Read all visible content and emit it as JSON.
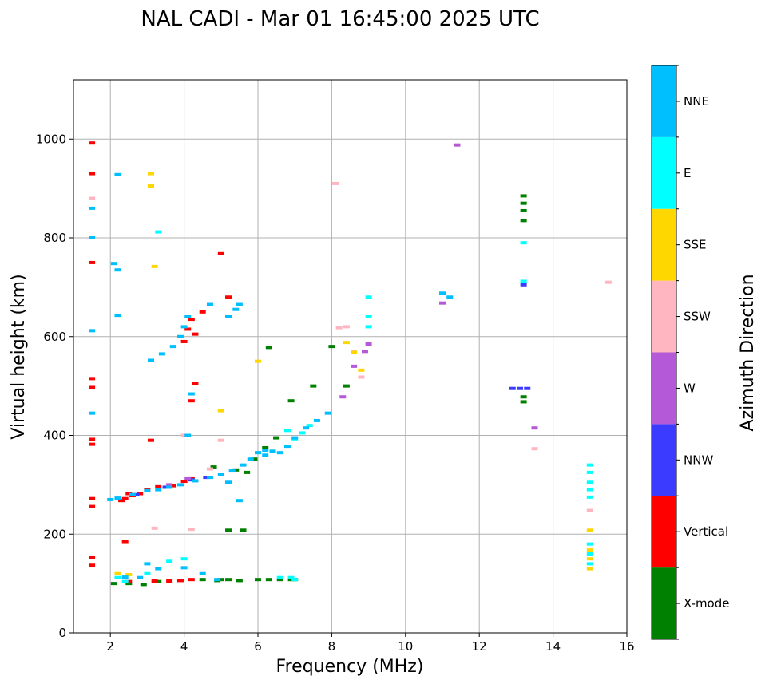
{
  "chart_data": {
    "type": "scatter",
    "title": "NAL CADI - Mar 01 16:45:00 2025 UTC",
    "xlabel": "Frequency (MHz)",
    "ylabel": "Virtual height (km)",
    "xlim": [
      1,
      16
    ],
    "ylim": [
      0,
      1120
    ],
    "x_ticks": [
      2,
      4,
      6,
      8,
      10,
      12,
      14,
      16
    ],
    "y_ticks": [
      0,
      200,
      400,
      600,
      800,
      1000
    ],
    "grid": true,
    "colorbar": {
      "label": "Azimuth Direction",
      "categories": [
        "X-mode",
        "Vertical",
        "NNW",
        "W",
        "SSW",
        "SSE",
        "E",
        "NNE"
      ],
      "colors": [
        "#008000",
        "#ff0000",
        "#3b3bff",
        "#b45ad8",
        "#ffb6c1",
        "#ffd700",
        "#00ffff",
        "#00bfff"
      ]
    },
    "series": [
      {
        "name": "X-mode",
        "points": [
          [
            2.1,
            100
          ],
          [
            2.5,
            100
          ],
          [
            2.9,
            98
          ],
          [
            3.3,
            104
          ],
          [
            4.5,
            108
          ],
          [
            5.0,
            108
          ],
          [
            5.2,
            108
          ],
          [
            5.5,
            106
          ],
          [
            6.0,
            108
          ],
          [
            6.3,
            108
          ],
          [
            6.6,
            108
          ],
          [
            6.9,
            108
          ],
          [
            7.0,
            108
          ],
          [
            5.2,
            208
          ],
          [
            5.6,
            208
          ],
          [
            4.9,
            106
          ],
          [
            5.9,
            352
          ],
          [
            6.2,
            375
          ],
          [
            6.5,
            395
          ],
          [
            6.3,
            578
          ],
          [
            6.9,
            470
          ],
          [
            7.5,
            500
          ],
          [
            8.0,
            580
          ],
          [
            8.4,
            500
          ],
          [
            13.2,
            885
          ],
          [
            13.2,
            870
          ],
          [
            13.2,
            855
          ],
          [
            13.2,
            835
          ],
          [
            13.2,
            478
          ],
          [
            13.2,
            468
          ],
          [
            4.8,
            336
          ],
          [
            5.4,
            330
          ],
          [
            5.7,
            325
          ]
        ]
      },
      {
        "name": "Vertical",
        "points": [
          [
            1.5,
            992
          ],
          [
            1.5,
            930
          ],
          [
            1.5,
            750
          ],
          [
            1.5,
            515
          ],
          [
            1.5,
            497
          ],
          [
            1.5,
            392
          ],
          [
            1.5,
            382
          ],
          [
            1.5,
            272
          ],
          [
            1.5,
            256
          ],
          [
            1.5,
            152
          ],
          [
            1.5,
            137
          ],
          [
            2.4,
            185
          ],
          [
            2.4,
            272
          ],
          [
            2.6,
            278
          ],
          [
            2.8,
            282
          ],
          [
            3.0,
            290
          ],
          [
            3.3,
            296
          ],
          [
            3.7,
            298
          ],
          [
            4.0,
            307
          ],
          [
            4.2,
            312
          ],
          [
            3.2,
            105
          ],
          [
            3.6,
            105
          ],
          [
            3.9,
            106
          ],
          [
            4.2,
            108
          ],
          [
            2.5,
            104
          ],
          [
            4.0,
            590
          ],
          [
            4.1,
            615
          ],
          [
            4.2,
            635
          ],
          [
            4.2,
            470
          ],
          [
            4.3,
            505
          ],
          [
            5.0,
            768
          ],
          [
            5.2,
            680
          ],
          [
            3.1,
            390
          ],
          [
            4.5,
            650
          ],
          [
            2.5,
            282
          ],
          [
            2.3,
            268
          ],
          [
            4.3,
            605
          ]
        ]
      },
      {
        "name": "NNW",
        "points": [
          [
            2.7,
            280
          ],
          [
            3.5,
            295
          ],
          [
            4.2,
            310
          ],
          [
            4.6,
            315
          ],
          [
            12.9,
            495
          ],
          [
            13.1,
            495
          ],
          [
            13.2,
            705
          ],
          [
            13.3,
            495
          ]
        ]
      },
      {
        "name": "W",
        "points": [
          [
            8.3,
            478
          ],
          [
            8.6,
            540
          ],
          [
            8.9,
            570
          ],
          [
            9.0,
            585
          ],
          [
            11.0,
            668
          ],
          [
            11.4,
            988
          ],
          [
            13.5,
            415
          ],
          [
            4.1,
            312
          ],
          [
            3.6,
            300
          ]
        ]
      },
      {
        "name": "SSW",
        "points": [
          [
            1.5,
            880
          ],
          [
            8.1,
            910
          ],
          [
            8.2,
            618
          ],
          [
            8.4,
            620
          ],
          [
            8.6,
            570
          ],
          [
            8.8,
            518
          ],
          [
            13.5,
            373
          ],
          [
            15.0,
            248
          ],
          [
            15.5,
            710
          ],
          [
            4.0,
            400
          ],
          [
            4.2,
            210
          ],
          [
            5.0,
            390
          ],
          [
            3.2,
            212
          ],
          [
            4.7,
            332
          ]
        ]
      },
      {
        "name": "SSE",
        "points": [
          [
            3.1,
            930
          ],
          [
            3.1,
            905
          ],
          [
            3.2,
            742
          ],
          [
            8.4,
            588
          ],
          [
            8.6,
            568
          ],
          [
            8.8,
            532
          ],
          [
            15.0,
            208
          ],
          [
            15.0,
            168
          ],
          [
            15.0,
            150
          ],
          [
            15.0,
            130
          ],
          [
            2.2,
            120
          ],
          [
            2.5,
            118
          ],
          [
            5.0,
            450
          ],
          [
            6.0,
            550
          ]
        ]
      },
      {
        "name": "E",
        "points": [
          [
            2.2,
            112
          ],
          [
            3.0,
            120
          ],
          [
            3.6,
            145
          ],
          [
            4.0,
            150
          ],
          [
            6.6,
            112
          ],
          [
            6.9,
            112
          ],
          [
            7.0,
            108
          ],
          [
            9.0,
            620
          ],
          [
            9.0,
            640
          ],
          [
            9.0,
            680
          ],
          [
            15.0,
            340
          ],
          [
            15.0,
            325
          ],
          [
            15.0,
            305
          ],
          [
            15.0,
            290
          ],
          [
            15.0,
            275
          ],
          [
            15.0,
            180
          ],
          [
            15.0,
            160
          ],
          [
            15.0,
            140
          ],
          [
            2.4,
            104
          ],
          [
            3.3,
            812
          ],
          [
            6.8,
            410
          ],
          [
            7.0,
            393
          ],
          [
            7.2,
            405
          ],
          [
            7.4,
            420
          ],
          [
            13.2,
            790
          ],
          [
            13.2,
            712
          ]
        ]
      },
      {
        "name": "NNE",
        "points": [
          [
            1.5,
            860
          ],
          [
            1.5,
            800
          ],
          [
            1.5,
            612
          ],
          [
            1.5,
            445
          ],
          [
            2.2,
            928
          ],
          [
            2.1,
            748
          ],
          [
            2.2,
            735
          ],
          [
            2.2,
            643
          ],
          [
            2.0,
            270
          ],
          [
            2.2,
            273
          ],
          [
            2.6,
            280
          ],
          [
            3.0,
            288
          ],
          [
            3.3,
            290
          ],
          [
            3.6,
            295
          ],
          [
            3.9,
            300
          ],
          [
            4.3,
            308
          ],
          [
            4.7,
            315
          ],
          [
            5.0,
            320
          ],
          [
            5.3,
            328
          ],
          [
            5.6,
            340
          ],
          [
            5.8,
            352
          ],
          [
            6.0,
            365
          ],
          [
            6.2,
            370
          ],
          [
            6.4,
            368
          ],
          [
            6.6,
            365
          ],
          [
            6.8,
            378
          ],
          [
            7.0,
            395
          ],
          [
            7.3,
            415
          ],
          [
            7.6,
            430
          ],
          [
            7.9,
            445
          ],
          [
            3.1,
            552
          ],
          [
            3.4,
            565
          ],
          [
            3.7,
            580
          ],
          [
            3.9,
            600
          ],
          [
            4.0,
            620
          ],
          [
            4.1,
            640
          ],
          [
            4.7,
            665
          ],
          [
            5.2,
            640
          ],
          [
            5.4,
            655
          ],
          [
            5.5,
            665
          ],
          [
            3.0,
            140
          ],
          [
            3.3,
            130
          ],
          [
            4.0,
            132
          ],
          [
            4.5,
            120
          ],
          [
            4.9,
            108
          ],
          [
            6.2,
            360
          ],
          [
            11.0,
            688
          ],
          [
            11.2,
            680
          ],
          [
            2.4,
            113
          ],
          [
            2.8,
            112
          ],
          [
            4.2,
            484
          ],
          [
            5.5,
            268
          ],
          [
            5.2,
            305
          ],
          [
            4.1,
            400
          ]
        ]
      }
    ]
  }
}
